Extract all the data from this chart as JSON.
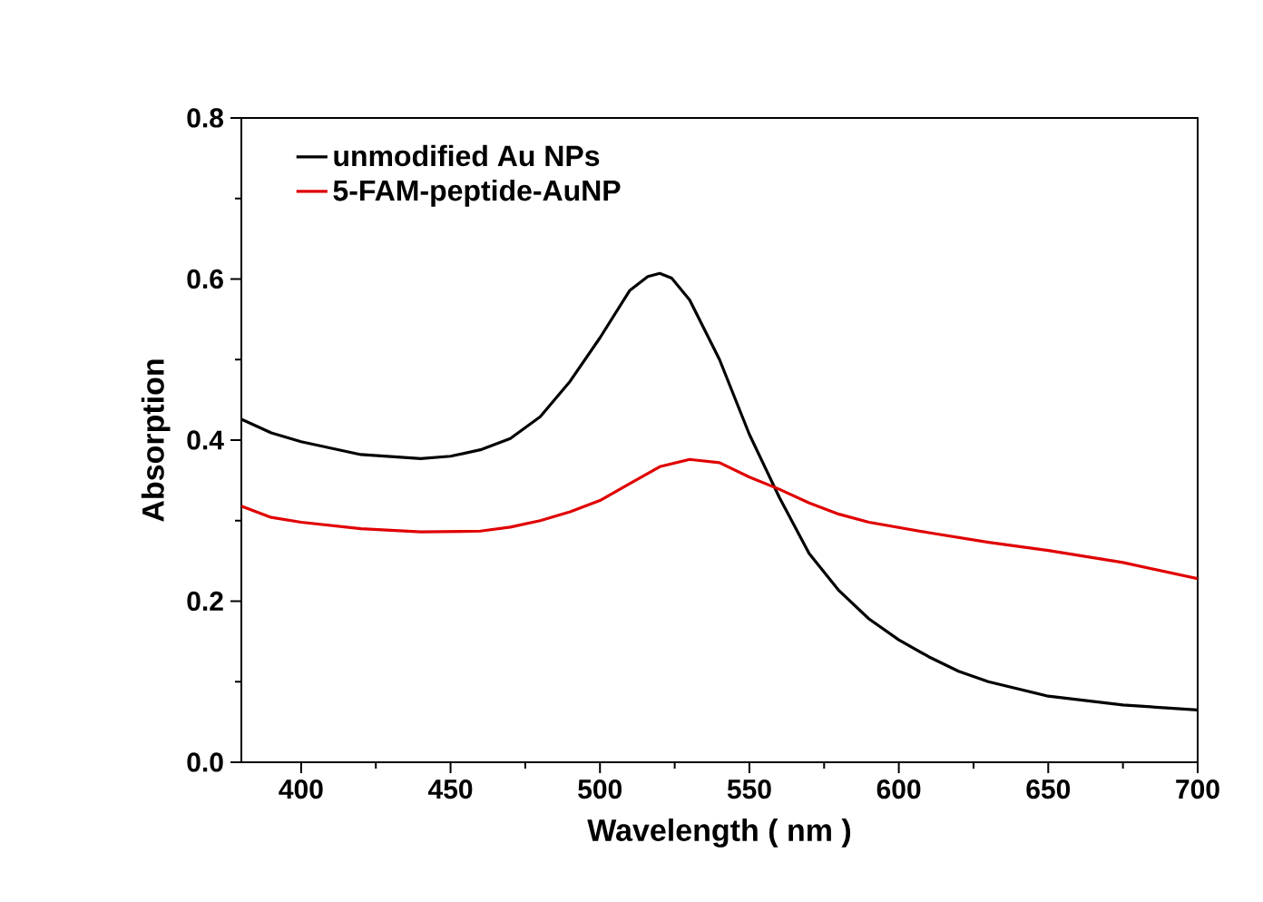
{
  "chart_data": {
    "type": "line",
    "xlabel": "Wavelength ( nm )",
    "ylabel": "Absorption",
    "xlim": [
      380,
      700
    ],
    "xticks": [
      400,
      450,
      500,
      550,
      600,
      650,
      700
    ],
    "ylim": [
      0,
      0.8
    ],
    "yticks": [
      {
        "value": 0,
        "label": "0.0"
      },
      0.2,
      0.4,
      0.6,
      {
        "value": 0.8,
        "label": "0.8"
      }
    ],
    "legend": "top left",
    "grid": false,
    "series": [
      {
        "name": "unmodified Au NPs",
        "color": "#000000",
        "x": [
          380,
          390,
          400,
          420,
          440,
          450,
          460,
          470,
          480,
          490,
          500,
          510,
          516,
          520,
          524,
          530,
          540,
          550,
          560,
          570,
          580,
          590,
          600,
          610,
          620,
          630,
          650,
          675,
          700
        ],
        "values": [
          0.426,
          0.409,
          0.398,
          0.382,
          0.377,
          0.38,
          0.388,
          0.402,
          0.429,
          0.473,
          0.527,
          0.586,
          0.603,
          0.607,
          0.601,
          0.574,
          0.5,
          0.407,
          0.329,
          0.259,
          0.213,
          0.178,
          0.152,
          0.131,
          0.113,
          0.1,
          0.082,
          0.071,
          0.065
        ]
      },
      {
        "name": "5-FAM-peptide-AuNP",
        "color": "#e00000",
        "x": [
          380,
          390,
          400,
          420,
          440,
          460,
          470,
          480,
          490,
          500,
          510,
          520,
          530,
          540,
          550,
          560,
          570,
          580,
          590,
          610,
          630,
          650,
          675,
          700
        ],
        "values": [
          0.318,
          0.304,
          0.298,
          0.29,
          0.286,
          0.287,
          0.292,
          0.3,
          0.311,
          0.325,
          0.346,
          0.367,
          0.376,
          0.372,
          0.354,
          0.339,
          0.322,
          0.308,
          0.298,
          0.285,
          0.273,
          0.263,
          0.248,
          0.228
        ]
      }
    ]
  }
}
